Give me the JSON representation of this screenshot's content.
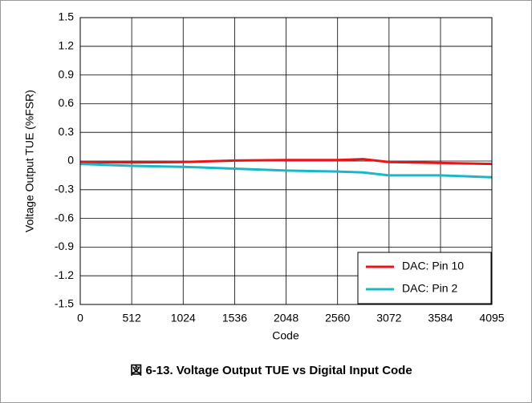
{
  "chart_data": {
    "type": "line",
    "title": "図 6-13. Voltage Output TUE vs Digital Input Code",
    "x_label": "Code",
    "y_label": "Voltage Output TUE (%FSR)",
    "x": [
      0,
      512,
      1024,
      1536,
      2048,
      2560,
      2816,
      3072,
      3584,
      4095
    ],
    "series": [
      {
        "name": "DAC: Pin 10",
        "color": "#e8141a",
        "values": [
          -0.01,
          -0.015,
          -0.01,
          0.005,
          0.01,
          0.01,
          0.02,
          -0.01,
          -0.02,
          -0.03
        ]
      },
      {
        "name": "DAC: Pin 2",
        "color": "#1ab8c4",
        "values": [
          -0.03,
          -0.05,
          -0.06,
          -0.08,
          -0.1,
          -0.11,
          -0.12,
          -0.15,
          -0.15,
          -0.17
        ]
      }
    ],
    "xlim": [
      0,
      4095
    ],
    "xticks": [
      0,
      512,
      1024,
      1536,
      2048,
      2560,
      3072,
      3584,
      4095
    ],
    "ylim": [
      -1.5,
      1.5
    ],
    "yticks": [
      -1.5,
      -1.2,
      -0.9,
      -0.6,
      -0.3,
      0,
      0.3,
      0.6,
      0.9,
      1.2,
      1.5
    ],
    "grid": true,
    "legend": "lower right"
  }
}
